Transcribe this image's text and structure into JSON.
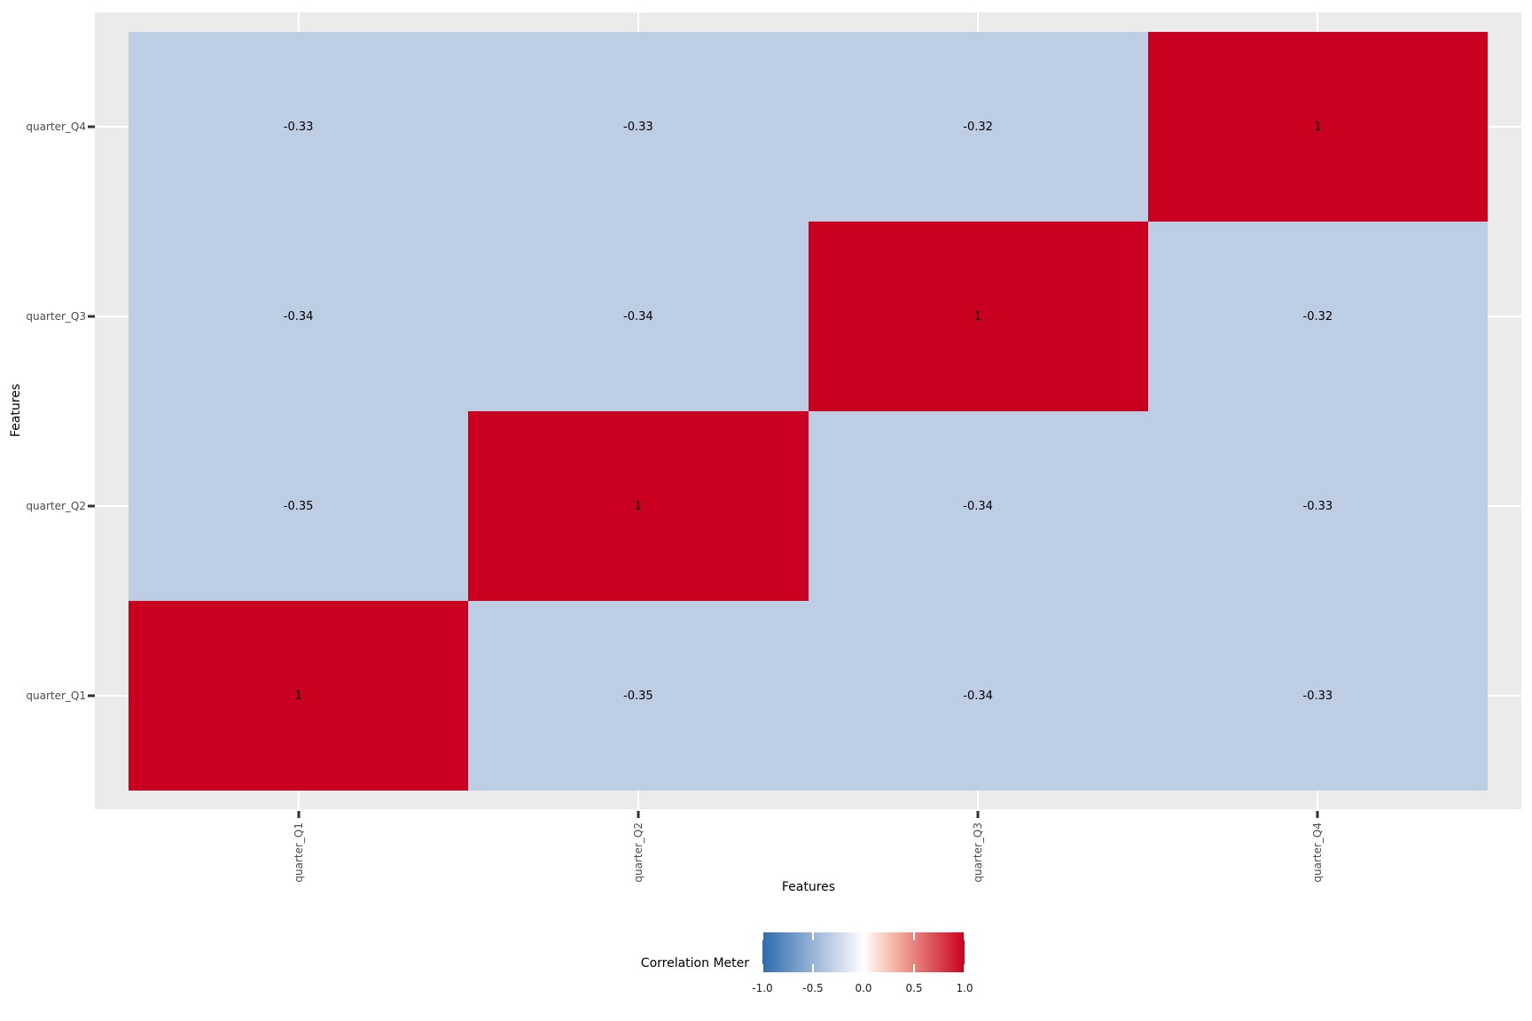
{
  "chart_data": {
    "type": "heatmap",
    "title": "",
    "xlabel": "Features",
    "ylabel": "Features",
    "x_categories": [
      "quarter_Q1",
      "quarter_Q2",
      "quarter_Q3",
      "quarter_Q4"
    ],
    "y_categories_top_to_bottom": [
      "quarter_Q4",
      "quarter_Q3",
      "quarter_Q2",
      "quarter_Q1"
    ],
    "matrix_rows_top_to_bottom": [
      [
        -0.33,
        -0.33,
        -0.32,
        1
      ],
      [
        -0.34,
        -0.34,
        1,
        -0.32
      ],
      [
        -0.35,
        1,
        -0.34,
        -0.33
      ],
      [
        1,
        -0.35,
        -0.34,
        -0.33
      ]
    ],
    "cell_labels": [
      [
        "-0.33",
        "-0.33",
        "-0.32",
        "1"
      ],
      [
        "-0.34",
        "-0.34",
        "1",
        "-0.32"
      ],
      [
        "-0.35",
        "1",
        "-0.34",
        "-0.33"
      ],
      [
        "1",
        "-0.35",
        "-0.34",
        "-0.33"
      ]
    ],
    "value_range": [
      -1,
      1
    ],
    "grid": true,
    "legend_position": "bottom",
    "legend": {
      "title": "Correlation Meter",
      "tick_labels": [
        "-1.0",
        "-0.5",
        "0.0",
        "0.5",
        "1.0"
      ],
      "tick_positions_pct": [
        0,
        25,
        50,
        75,
        100
      ],
      "notch_positions_pct": [
        0,
        25,
        75,
        100
      ],
      "gradient_stops": [
        {
          "pos": 0,
          "color": "#2d6bad"
        },
        {
          "pos": 33.5,
          "color": "#bccde4"
        },
        {
          "pos": 50,
          "color": "#ffffff"
        },
        {
          "pos": 66.5,
          "color": "#f2b09e"
        },
        {
          "pos": 100,
          "color": "#ca0020"
        }
      ]
    },
    "colors": {
      "panel_bg": "#ebebeb",
      "grid_line": "#ffffff",
      "negative_cell": "#bccde4",
      "positive_cell": "#ca0020",
      "axis_tick_text": "#4d4d4d",
      "tick_mark": "#333333",
      "cell_text": "#000000"
    }
  }
}
